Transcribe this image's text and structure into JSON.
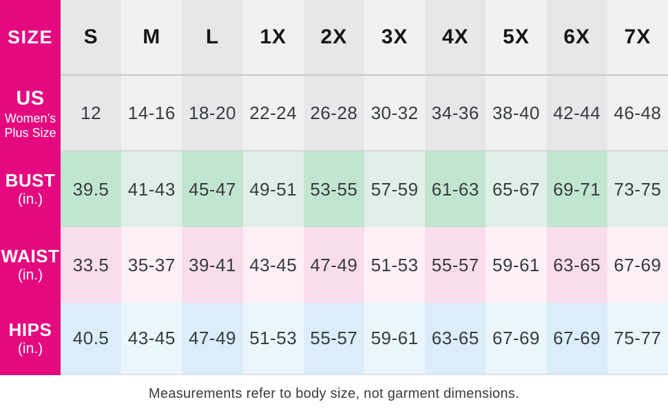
{
  "colors": {
    "magenta": "#E5097F",
    "gray_dark": "#E7E7E9",
    "gray_light": "#F1F1F2",
    "green_dark": "#C2E5D1",
    "green_light": "#E0F0E9",
    "pink_dark": "#FADDEC",
    "pink_light": "#FDEFF6",
    "blue_dark": "#DAEDF9",
    "blue_light": "#EBF5FC",
    "header_text": "#161616",
    "value_text": "#363B3D",
    "label_text": "#FFFFFF",
    "caption_text": "#3A3A3A"
  },
  "table": {
    "corner_label": "SIZE",
    "columns": [
      "S",
      "M",
      "L",
      "1X",
      "2X",
      "3X",
      "4X",
      "5X",
      "6X",
      "7X"
    ],
    "rows": [
      {
        "id": "us",
        "label_main": "US",
        "label_sub": "Women’s Plus Size",
        "values": [
          "12",
          "14-16",
          "18-20",
          "22-24",
          "26-28",
          "30-32",
          "34-36",
          "38-40",
          "42-44",
          "46-48"
        ]
      },
      {
        "id": "bust",
        "label_main": "BUST",
        "label_sub": "(in.)",
        "values": [
          "39.5",
          "41-43",
          "45-47",
          "49-51",
          "53-55",
          "57-59",
          "61-63",
          "65-67",
          "69-71",
          "73-75"
        ]
      },
      {
        "id": "waist",
        "label_main": "WAIST",
        "label_sub": "(in.)",
        "values": [
          "33.5",
          "35-37",
          "39-41",
          "43-45",
          "47-49",
          "51-53",
          "55-57",
          "59-61",
          "63-65",
          "67-69"
        ]
      },
      {
        "id": "hips",
        "label_main": "HIPS",
        "label_sub": "(in.)",
        "values": [
          "40.5",
          "43-45",
          "47-49",
          "51-53",
          "55-57",
          "59-61",
          "63-65",
          "67-69",
          "67-69",
          "75-77"
        ]
      }
    ]
  },
  "caption": "Measurements refer to body size, not garment dimensions.",
  "chart_data": {
    "type": "table",
    "title": "Size chart — US Women’s Plus Size",
    "columns": [
      "SIZE",
      "S",
      "M",
      "L",
      "1X",
      "2X",
      "3X",
      "4X",
      "5X",
      "6X",
      "7X"
    ],
    "rows": [
      [
        "US Women’s Plus Size",
        "12",
        "14-16",
        "18-20",
        "22-24",
        "26-28",
        "30-32",
        "34-36",
        "38-40",
        "42-44",
        "46-48"
      ],
      [
        "BUST (in.)",
        "39.5",
        "41-43",
        "45-47",
        "49-51",
        "53-55",
        "57-59",
        "61-63",
        "65-67",
        "69-71",
        "73-75"
      ],
      [
        "WAIST (in.)",
        "33.5",
        "35-37",
        "39-41",
        "43-45",
        "47-49",
        "51-53",
        "55-57",
        "59-61",
        "63-65",
        "67-69"
      ],
      [
        "HIPS (in.)",
        "40.5",
        "43-45",
        "47-49",
        "51-53",
        "55-57",
        "59-61",
        "63-65",
        "67-69",
        "67-69",
        "75-77"
      ]
    ],
    "footnote": "Measurements refer to body size, not garment dimensions."
  }
}
